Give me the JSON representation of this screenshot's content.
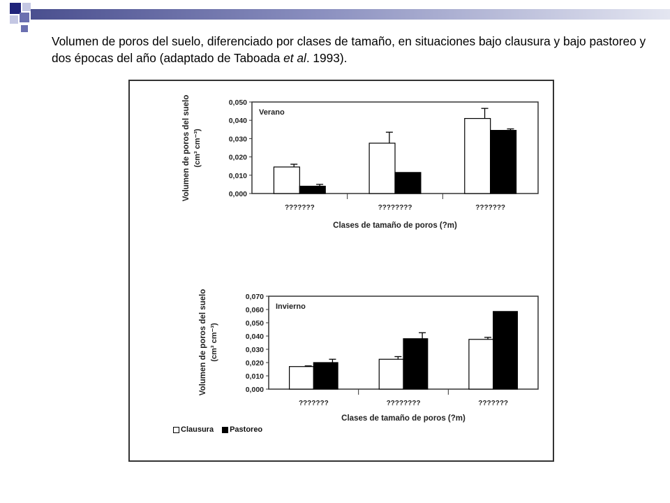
{
  "slide": {
    "title_main": "Volumen de poros del suelo, diferenciado por clases de tamaño, en situaciones bajo clausura y bajo pastoreo y dos épocas del año (adaptado de Taboada ",
    "title_italic": "et al",
    "title_end": ". 1993)."
  },
  "colors": {
    "clausura": "#ffffff",
    "pastoreo": "#000000",
    "deco_dark": "#1f237a",
    "deco_mid": "#6b70b0",
    "deco_light": "#c4c7e3"
  },
  "legend": {
    "items": [
      "Clausura",
      "Pastoreo"
    ]
  },
  "chart_data": [
    {
      "type": "bar",
      "annotation": "Verano",
      "categories": [
        "???????",
        "????????",
        "???????"
      ],
      "series": [
        {
          "name": "Clausura",
          "values": [
            0.0145,
            0.0275,
            0.041
          ],
          "errors": [
            0.0015,
            0.006,
            0.0055
          ]
        },
        {
          "name": "Pastoreo",
          "values": [
            0.004,
            0.0115,
            0.0345
          ],
          "errors": [
            0.001,
            0.0,
            0.0008
          ]
        }
      ],
      "ylabel": "Volumen de poros del suelo",
      "yunits": "(cm³ cm⁻³)",
      "xlabel": "Clases de tamaño de poros  (?m)",
      "ylim": [
        0,
        0.05
      ],
      "yticks": [
        "0,000",
        "0,010",
        "0,020",
        "0,030",
        "0,040",
        "0,050"
      ],
      "grid": false
    },
    {
      "type": "bar",
      "annotation": "Invierno",
      "categories": [
        "???????",
        "????????",
        "???????"
      ],
      "series": [
        {
          "name": "Clausura",
          "values": [
            0.017,
            0.0225,
            0.0375
          ],
          "errors": [
            0.0005,
            0.002,
            0.0015
          ]
        },
        {
          "name": "Pastoreo",
          "values": [
            0.02,
            0.038,
            0.0585
          ],
          "errors": [
            0.0025,
            0.0045,
            0.0
          ]
        }
      ],
      "ylabel": "Volumen de poros del suelo",
      "yunits": "(cm³ cm⁻³)",
      "xlabel": "Clases de tamaño de poros  (?m)",
      "ylim": [
        0,
        0.07
      ],
      "yticks": [
        "0,000",
        "0,010",
        "0,020",
        "0,030",
        "0,040",
        "0,050",
        "0,060",
        "0,070"
      ],
      "grid": false
    }
  ]
}
